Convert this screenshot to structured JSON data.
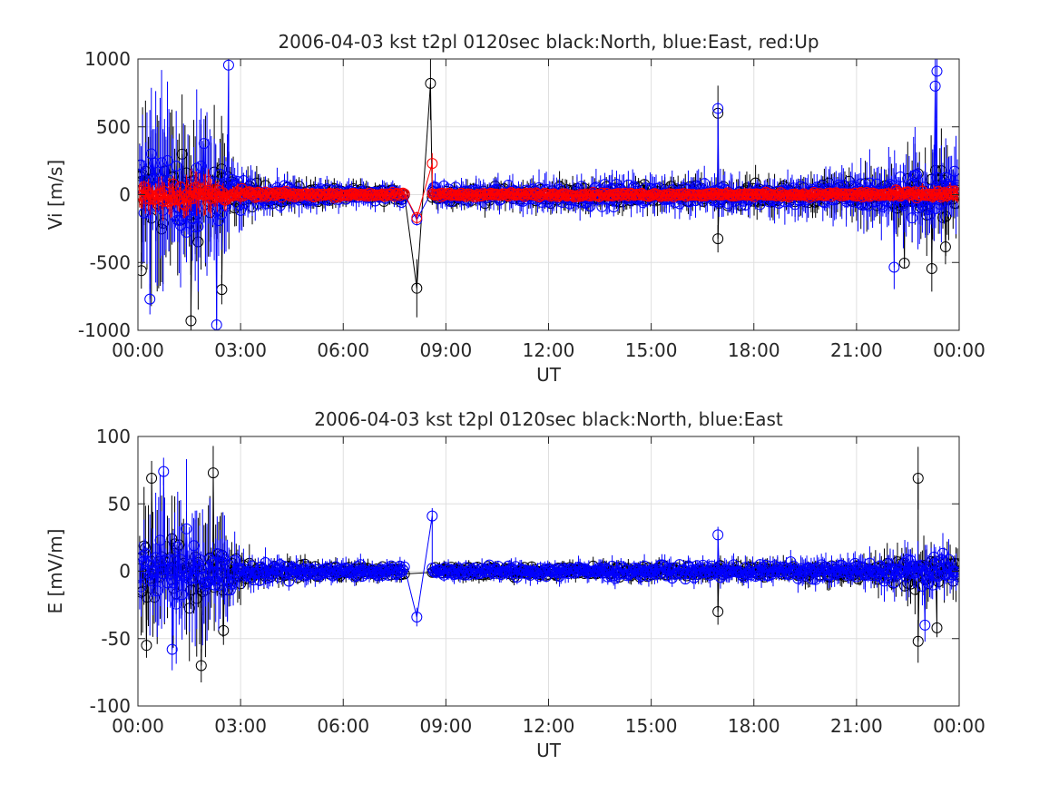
{
  "chart_data": [
    {
      "type": "scatter",
      "title": "2006-04-03 kst t2pl 0120sec black:North, blue:East, red:Up",
      "xlabel": "UT",
      "ylabel": "Vi [m/s]",
      "xlim_hours": [
        0,
        24
      ],
      "ylim": [
        -1000,
        1000
      ],
      "xticks": [
        0,
        3,
        6,
        9,
        12,
        15,
        18,
        21,
        24
      ],
      "xtick_labels": [
        "00:00",
        "03:00",
        "06:00",
        "09:00",
        "12:00",
        "15:00",
        "18:00",
        "21:00",
        "00:00"
      ],
      "yticks": [
        -1000,
        -500,
        0,
        500,
        1000
      ],
      "ytick_labels": [
        "-1000",
        "-500",
        "0",
        "500",
        "1000"
      ],
      "grid": true,
      "data_gap_hours": [
        7.8,
        8.6
      ],
      "series": [
        {
          "color": "#000000",
          "envelope": [
            [
              0.2,
              500
            ],
            [
              0.5,
              600
            ],
            [
              1.0,
              500
            ],
            [
              1.5,
              450
            ],
            [
              2.0,
              500
            ],
            [
              2.5,
              400
            ],
            [
              3.0,
              200
            ],
            [
              3.5,
              130
            ],
            [
              4.0,
              110
            ],
            [
              5.0,
              100
            ],
            [
              6.0,
              80
            ],
            [
              7.0,
              70
            ],
            [
              8.8,
              80
            ],
            [
              10.0,
              90
            ],
            [
              12.0,
              100
            ],
            [
              14.0,
              110
            ],
            [
              16.0,
              110
            ],
            [
              18.0,
              120
            ],
            [
              20.0,
              140
            ],
            [
              21.0,
              160
            ],
            [
              22.0,
              220
            ],
            [
              23.0,
              300
            ],
            [
              23.8,
              300
            ]
          ],
          "highlights": [
            {
              "x": 8.15,
              "y": -690
            },
            {
              "x": 8.55,
              "y": 820
            },
            {
              "x": 16.95,
              "y": 600
            },
            {
              "x": 16.95,
              "y": -325
            },
            {
              "x": 23.2,
              "y": -545
            },
            {
              "x": 23.6,
              "y": -385
            },
            {
              "x": 22.4,
              "y": -505
            },
            {
              "x": 1.55,
              "y": -930
            },
            {
              "x": 0.1,
              "y": -560
            },
            {
              "x": 2.45,
              "y": -700
            }
          ]
        },
        {
          "color": "#0000ff",
          "envelope": [
            [
              0.2,
              500
            ],
            [
              0.5,
              650
            ],
            [
              1.0,
              550
            ],
            [
              1.5,
              500
            ],
            [
              2.0,
              550
            ],
            [
              2.5,
              400
            ],
            [
              3.0,
              220
            ],
            [
              3.5,
              150
            ],
            [
              4.0,
              130
            ],
            [
              5.0,
              110
            ],
            [
              6.0,
              90
            ],
            [
              7.0,
              80
            ],
            [
              8.8,
              100
            ],
            [
              10.0,
              110
            ],
            [
              12.0,
              120
            ],
            [
              14.0,
              130
            ],
            [
              16.0,
              130
            ],
            [
              18.0,
              140
            ],
            [
              20.0,
              160
            ],
            [
              21.0,
              190
            ],
            [
              22.0,
              260
            ],
            [
              23.0,
              340
            ],
            [
              23.8,
              320
            ]
          ],
          "highlights": [
            {
              "x": 8.15,
              "y": -185
            },
            {
              "x": 16.95,
              "y": 635
            },
            {
              "x": 23.35,
              "y": 910
            },
            {
              "x": 23.3,
              "y": 800
            },
            {
              "x": 2.65,
              "y": 955
            },
            {
              "x": 22.1,
              "y": -535
            },
            {
              "x": 0.35,
              "y": -770
            },
            {
              "x": 2.3,
              "y": -960
            }
          ]
        },
        {
          "color": "#ff0000",
          "envelope": [
            [
              0.2,
              120
            ],
            [
              1.0,
              130
            ],
            [
              2.0,
              150
            ],
            [
              2.5,
              80
            ],
            [
              3.5,
              40
            ],
            [
              5.0,
              30
            ],
            [
              7.0,
              25
            ],
            [
              8.8,
              30
            ],
            [
              12.0,
              25
            ],
            [
              16.0,
              25
            ],
            [
              20.0,
              30
            ],
            [
              22.0,
              45
            ],
            [
              23.8,
              60
            ]
          ],
          "highlights": [
            {
              "x": 8.15,
              "y": -170
            },
            {
              "x": 8.6,
              "y": 230
            }
          ]
        }
      ]
    },
    {
      "type": "scatter",
      "title": "2006-04-03 kst t2pl 0120sec black:North, blue:East",
      "xlabel": "UT",
      "ylabel": "E [mV/m]",
      "xlim_hours": [
        0,
        24
      ],
      "ylim": [
        -100,
        100
      ],
      "xticks": [
        0,
        3,
        6,
        9,
        12,
        15,
        18,
        21,
        24
      ],
      "xtick_labels": [
        "00:00",
        "03:00",
        "06:00",
        "09:00",
        "12:00",
        "15:00",
        "18:00",
        "21:00",
        "00:00"
      ],
      "yticks": [
        -100,
        -50,
        0,
        50,
        100
      ],
      "ytick_labels": [
        "-100",
        "-50",
        "0",
        "50",
        "100"
      ],
      "grid": true,
      "data_gap_hours": [
        7.8,
        8.6
      ],
      "series": [
        {
          "color": "#000000",
          "envelope": [
            [
              0.2,
              40
            ],
            [
              0.5,
              45
            ],
            [
              1.0,
              40
            ],
            [
              1.5,
              40
            ],
            [
              2.0,
              45
            ],
            [
              2.5,
              30
            ],
            [
              3.0,
              15
            ],
            [
              3.5,
              10
            ],
            [
              4.0,
              9
            ],
            [
              5.0,
              8
            ],
            [
              6.0,
              7
            ],
            [
              7.0,
              6
            ],
            [
              8.8,
              6
            ],
            [
              10.0,
              6
            ],
            [
              12.0,
              6
            ],
            [
              14.0,
              7
            ],
            [
              16.0,
              7
            ],
            [
              18.0,
              8
            ],
            [
              20.0,
              9
            ],
            [
              21.0,
              10
            ],
            [
              22.0,
              14
            ],
            [
              23.0,
              20
            ],
            [
              23.8,
              18
            ]
          ],
          "highlights": [
            {
              "x": 0.4,
              "y": 69
            },
            {
              "x": 2.2,
              "y": 73
            },
            {
              "x": 1.85,
              "y": -70
            },
            {
              "x": 0.25,
              "y": -55
            },
            {
              "x": 22.8,
              "y": 69
            },
            {
              "x": 22.8,
              "y": -52
            },
            {
              "x": 23.35,
              "y": -42
            },
            {
              "x": 16.95,
              "y": -30
            },
            {
              "x": 2.5,
              "y": -44
            }
          ]
        },
        {
          "color": "#0000ff",
          "envelope": [
            [
              0.2,
              40
            ],
            [
              0.5,
              45
            ],
            [
              1.0,
              45
            ],
            [
              1.5,
              45
            ],
            [
              2.0,
              45
            ],
            [
              2.5,
              30
            ],
            [
              3.0,
              16
            ],
            [
              3.5,
              11
            ],
            [
              4.0,
              10
            ],
            [
              5.0,
              9
            ],
            [
              6.0,
              8
            ],
            [
              7.0,
              7
            ],
            [
              8.8,
              7
            ],
            [
              10.0,
              7
            ],
            [
              12.0,
              7
            ],
            [
              14.0,
              8
            ],
            [
              16.0,
              8
            ],
            [
              18.0,
              9
            ],
            [
              20.0,
              10
            ],
            [
              21.0,
              11
            ],
            [
              22.0,
              14
            ],
            [
              23.0,
              18
            ],
            [
              23.8,
              16
            ]
          ],
          "highlights": [
            {
              "x": 0.75,
              "y": 74
            },
            {
              "x": 8.15,
              "y": -34
            },
            {
              "x": 8.6,
              "y": 41
            },
            {
              "x": 16.95,
              "y": 27
            },
            {
              "x": 1.0,
              "y": -58
            },
            {
              "x": 23.0,
              "y": -40
            }
          ]
        }
      ]
    }
  ]
}
